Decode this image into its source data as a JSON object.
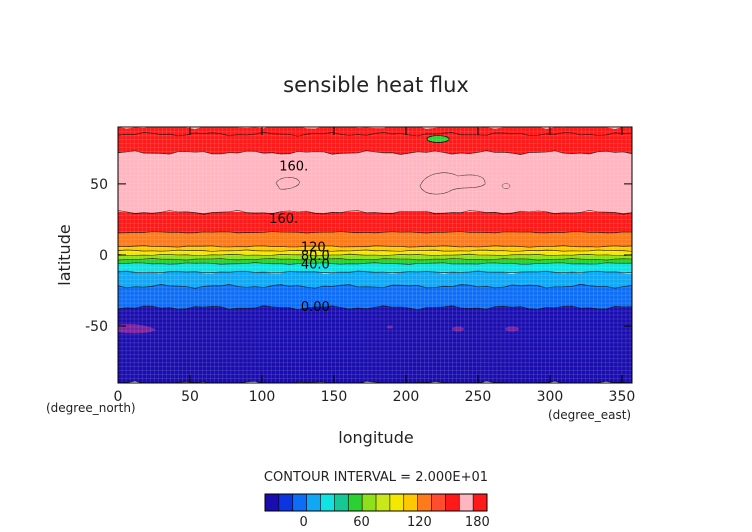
{
  "chart_data": {
    "type": "heatmap",
    "title": "sensible heat flux",
    "xlabel": "longitude",
    "ylabel": "latitude",
    "x_unit": "(degree_east)",
    "y_unit": "(degree_north)",
    "xlim": [
      0,
      357
    ],
    "ylim": [
      -90,
      90
    ],
    "x_ticks": [
      0,
      50,
      100,
      150,
      200,
      250,
      300,
      350
    ],
    "y_ticks": [
      -50,
      0,
      50
    ],
    "contour_interval_text": "CONTOUR INTERVAL = 2.000E+01",
    "contour_labels": [
      {
        "text": "160.",
        "x": 112,
        "y": 63
      },
      {
        "text": "160.",
        "x": 105,
        "y": 26
      },
      {
        "text": "120.",
        "x": 127,
        "y": 6
      },
      {
        "text": "80.0",
        "x": 127,
        "y": 0
      },
      {
        "text": "40.0",
        "x": 127,
        "y": -6
      },
      {
        "text": "0.00",
        "x": 127,
        "y": -36
      }
    ],
    "bands": [
      {
        "value_range": [
          180,
          190
        ],
        "lat": [
          85,
          90
        ]
      },
      {
        "value_range": [
          140,
          160
        ],
        "lat": [
          72,
          85
        ]
      },
      {
        "value_range": [
          160,
          180
        ],
        "lat": [
          30,
          72
        ]
      },
      {
        "value_range": [
          140,
          160
        ],
        "lat": [
          16,
          30
        ]
      },
      {
        "value_range": [
          120,
          140
        ],
        "lat": [
          6,
          16
        ]
      },
      {
        "value_range": [
          100,
          120
        ],
        "lat": [
          3,
          6
        ]
      },
      {
        "value_range": [
          80,
          100
        ],
        "lat": [
          0,
          3
        ]
      },
      {
        "value_range": [
          60,
          80
        ],
        "lat": [
          -3,
          0
        ]
      },
      {
        "value_range": [
          40,
          60
        ],
        "lat": [
          -6,
          -3
        ]
      },
      {
        "value_range": [
          20,
          40
        ],
        "lat": [
          -12,
          -6
        ]
      },
      {
        "value_range": [
          0,
          20
        ],
        "lat": [
          -22,
          -12
        ]
      },
      {
        "value_range": [
          -20,
          0
        ],
        "lat": [
          -37,
          -22
        ]
      },
      {
        "value_range": [
          -40,
          -20
        ],
        "lat": [
          -90,
          -37
        ]
      }
    ],
    "colorbar": {
      "ticks": [
        0,
        60,
        120,
        180
      ],
      "range": [
        -40,
        190
      ],
      "colors": [
        "#1a0db0",
        "#0b35e0",
        "#0d6ef5",
        "#10a8f5",
        "#12e2e2",
        "#16c896",
        "#2bd133",
        "#8ee01a",
        "#c9e81a",
        "#f5e800",
        "#ffc800",
        "#ff7a1a",
        "#ff4d30",
        "#ff1a1a",
        "#ffb6c1",
        "#ff1a1a"
      ]
    },
    "grid": false,
    "legend": "colorbar-bottom"
  }
}
